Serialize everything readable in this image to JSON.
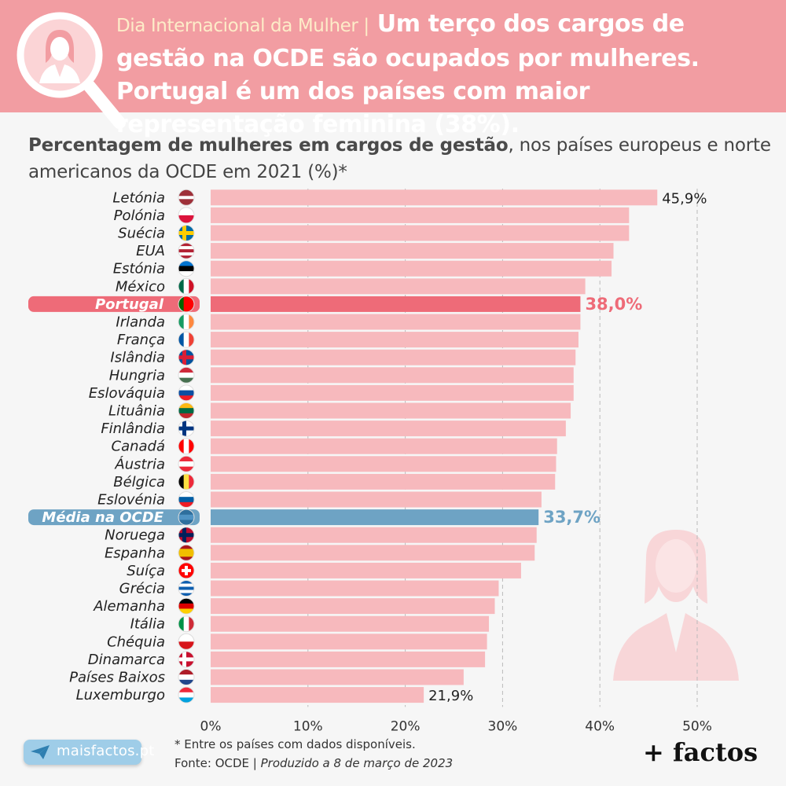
{
  "header": {
    "kicker": "Dia Internacional da Mulher |",
    "headline": "Um terço dos cargos de gestão na OCDE são ocupados por mulheres. Portugal é um dos países com maior representação feminina (38%)."
  },
  "subtitle": {
    "bold": "Percentagem de mulheres em cargos de gestão",
    "rest": ", nos países europeus e norte americanos da OCDE em 2021 (%)*"
  },
  "footer": {
    "note": "* Entre os países com dados disponíveis.",
    "source": "Fonte: OCDE | ",
    "produced": "Produzido a 8 de março de 2023",
    "site": "maisfactos.pt",
    "brand": "+ factos"
  },
  "colors": {
    "header_bg": "#f29da2",
    "bar": "#f7b9bd",
    "portugal": "#ee6b78",
    "oecd": "#6ea3c4",
    "grid": "#bbbbbb"
  },
  "chart_data": {
    "type": "bar",
    "orientation": "horizontal",
    "xlim": [
      0,
      50
    ],
    "xticks": [
      "0%",
      "10%",
      "20%",
      "30%",
      "40%",
      "50%"
    ],
    "grid": "vertical dashed",
    "categories": [
      {
        "name": "Letónia",
        "value": 45.9,
        "label": "45,9%",
        "flag": "latvia-flag-icon"
      },
      {
        "name": "Polónia",
        "value": 43.0,
        "flag": "poland-flag-icon"
      },
      {
        "name": "Suécia",
        "value": 43.0,
        "flag": "sweden-flag-icon"
      },
      {
        "name": "EUA",
        "value": 41.4,
        "flag": "usa-flag-icon"
      },
      {
        "name": "Estónia",
        "value": 41.2,
        "flag": "estonia-flag-icon"
      },
      {
        "name": "México",
        "value": 38.5,
        "flag": "mexico-flag-icon"
      },
      {
        "name": "Portugal",
        "value": 38.0,
        "label": "38,0%",
        "highlight": "portugal",
        "flag": "portugal-flag-icon"
      },
      {
        "name": "Irlanda",
        "value": 38.0,
        "flag": "ireland-flag-icon"
      },
      {
        "name": "França",
        "value": 37.8,
        "flag": "france-flag-icon"
      },
      {
        "name": "Islândia",
        "value": 37.5,
        "flag": "iceland-flag-icon"
      },
      {
        "name": "Hungria",
        "value": 37.3,
        "flag": "hungary-flag-icon"
      },
      {
        "name": "Eslováquia",
        "value": 37.3,
        "flag": "slovakia-flag-icon"
      },
      {
        "name": "Lituânia",
        "value": 37.0,
        "flag": "lithuania-flag-icon"
      },
      {
        "name": "Finlândia",
        "value": 36.5,
        "flag": "finland-flag-icon"
      },
      {
        "name": "Canadá",
        "value": 35.6,
        "flag": "canada-flag-icon"
      },
      {
        "name": "Áustria",
        "value": 35.5,
        "flag": "austria-flag-icon"
      },
      {
        "name": "Bélgica",
        "value": 35.4,
        "flag": "belgium-flag-icon"
      },
      {
        "name": "Eslovénia",
        "value": 34.0,
        "flag": "slovenia-flag-icon"
      },
      {
        "name": "Média na OCDE",
        "value": 33.7,
        "label": "33,7%",
        "highlight": "oecd",
        "flag": "globe-icon"
      },
      {
        "name": "Noruega",
        "value": 33.5,
        "flag": "norway-flag-icon"
      },
      {
        "name": "Espanha",
        "value": 33.3,
        "flag": "spain-flag-icon"
      },
      {
        "name": "Suíça",
        "value": 31.9,
        "flag": "switzerland-flag-icon"
      },
      {
        "name": "Grécia",
        "value": 29.6,
        "flag": "greece-flag-icon"
      },
      {
        "name": "Alemanha",
        "value": 29.2,
        "flag": "germany-flag-icon"
      },
      {
        "name": "Itália",
        "value": 28.6,
        "flag": "italy-flag-icon"
      },
      {
        "name": "Chéquia",
        "value": 28.4,
        "flag": "czechia-flag-icon"
      },
      {
        "name": "Dinamarca",
        "value": 28.2,
        "flag": "denmark-flag-icon"
      },
      {
        "name": "Países Baixos",
        "value": 26.0,
        "flag": "netherlands-flag-icon"
      },
      {
        "name": "Luxemburgo",
        "value": 21.9,
        "label": "21,9%",
        "flag": "luxembourg-flag-icon"
      }
    ]
  }
}
